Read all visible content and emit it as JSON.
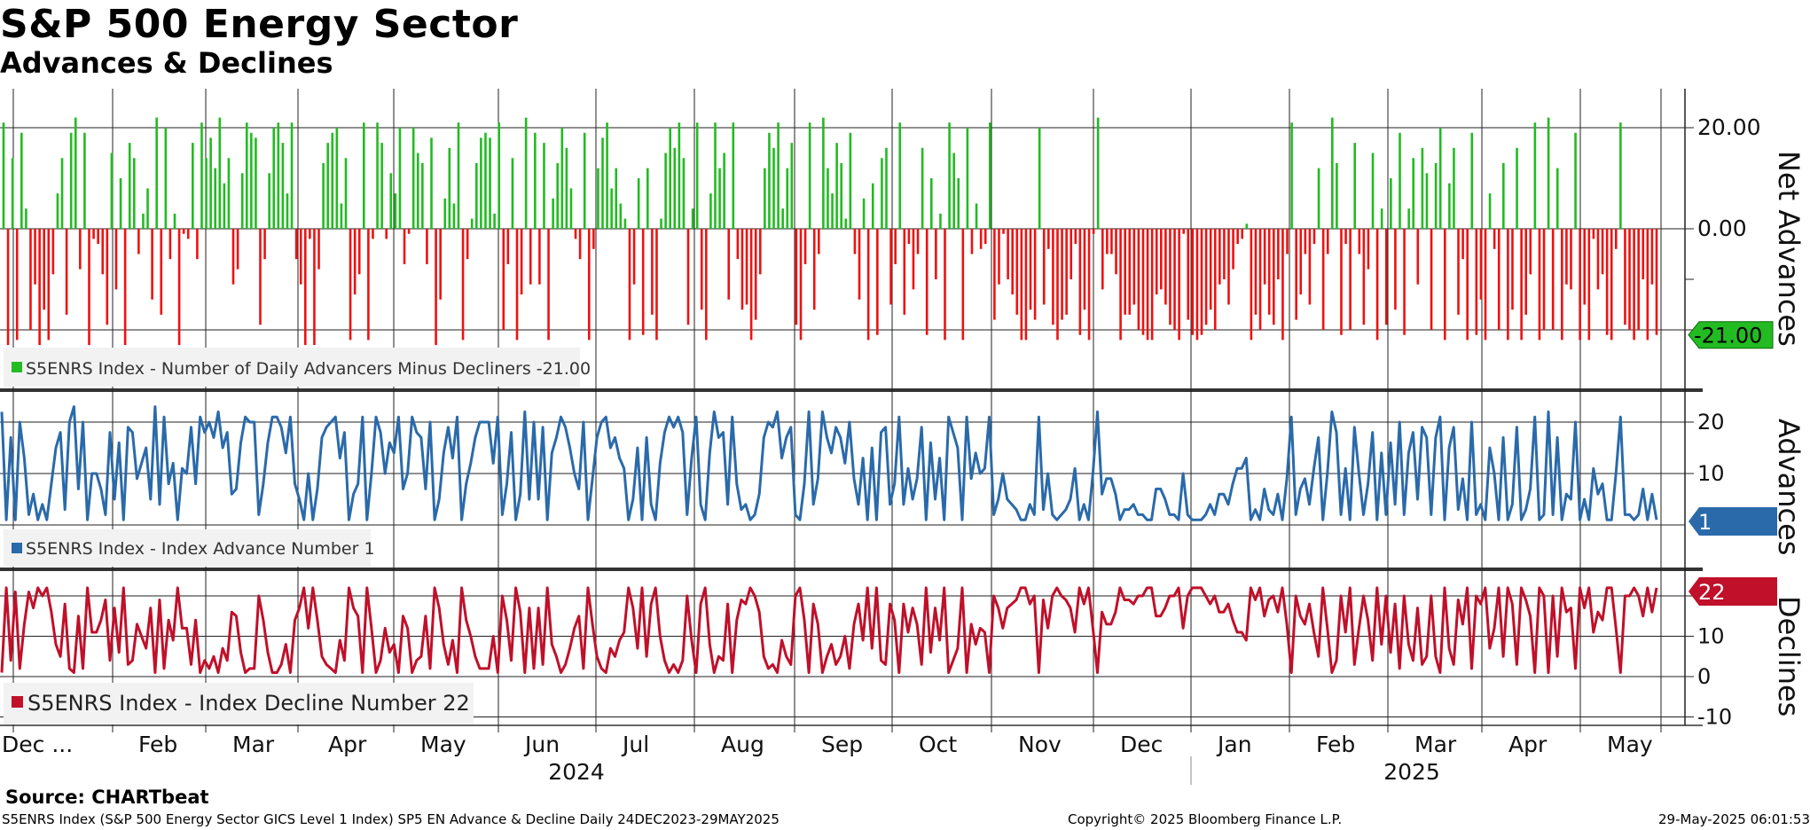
{
  "title": "S&P 500 Energy Sector",
  "subtitle": "Advances & Declines",
  "source": "Source: CHARTbeat",
  "footer": {
    "left": "S5ENRS Index (S&P 500 Energy Sector GICS Level 1 Index) SP5 EN Advance & Decline  Daily 24DEC2023-29MAY2025",
    "center": "Copyright© 2025 Bloomberg Finance L.P.",
    "right": "29-May-2025 06:01:53"
  },
  "colors": {
    "positive": "#22bb22",
    "negative": "#ee1111",
    "advances": "#2a6aaa",
    "declines": "#c0102a",
    "legendBg": "#f2f2f2",
    "tagGreen": "#22bb22",
    "tagBlue": "#2a6aaa",
    "tagRed": "#c0102a"
  },
  "chart_data": [
    {
      "type": "bar",
      "name": "net-advances",
      "axis_label": "Net Advances",
      "legend": "S5ENRS Index - Number of Daily Advancers Minus Decliners -21.00",
      "ylim": [
        -30,
        27
      ],
      "yticks": [
        20,
        0
      ],
      "ytick_labels": [
        "20.00",
        "0.00"
      ],
      "last_value": -21,
      "last_label": "-21.00",
      "values": [
        21,
        -23,
        14,
        -22,
        19,
        4,
        -20,
        -11,
        -23,
        -16,
        -22,
        -9,
        7,
        14,
        -17,
        19,
        22,
        -8,
        19,
        -23,
        -2,
        -3,
        -9,
        -19,
        15,
        -12,
        10,
        -23,
        17,
        14,
        -5,
        3,
        8,
        -14,
        22,
        -17,
        20,
        -6,
        3,
        -23,
        -1,
        -2,
        17,
        -6,
        21,
        14,
        18,
        12,
        22,
        9,
        14,
        -11,
        -8,
        11,
        21,
        19,
        18,
        -19,
        -6,
        11,
        20,
        21,
        17,
        7,
        21,
        -6,
        -11,
        -23,
        -2,
        -23,
        -8,
        13,
        17,
        19,
        20,
        5,
        14,
        -22,
        -13,
        -9,
        21,
        -22,
        -2,
        21,
        17,
        -2,
        11,
        7,
        20,
        -7,
        -1,
        20,
        15,
        13,
        -7,
        18,
        -23,
        -14,
        6,
        16,
        5,
        21,
        -22,
        -6,
        2,
        13,
        18,
        19,
        18,
        3,
        21,
        -20,
        -7,
        14,
        -22,
        -13,
        22,
        -11,
        19,
        -11,
        17,
        -22,
        6,
        13,
        20,
        16,
        8,
        -2,
        -6,
        19,
        -22,
        -4,
        12,
        18,
        21,
        8,
        12,
        5,
        2,
        -22,
        -11,
        10,
        -21,
        12,
        -17,
        -22,
        2,
        15,
        20,
        16,
        21,
        14,
        -19,
        4,
        21,
        -16,
        -22,
        7,
        21,
        12,
        15,
        -14,
        21,
        -6,
        -16,
        -15,
        -22,
        -18,
        -9,
        12,
        19,
        16,
        21,
        4,
        12,
        17,
        -19,
        -22,
        -7,
        21,
        -16,
        -5,
        22,
        12,
        7,
        17,
        13,
        2,
        19,
        -5,
        -14,
        6,
        -22,
        9,
        -21,
        14,
        16,
        -15,
        -7,
        21,
        -17,
        -3,
        -12,
        -5,
        16,
        -21,
        10,
        -10,
        3,
        -22,
        21,
        15,
        10,
        -22,
        20,
        -5,
        5,
        -4,
        -3,
        21,
        -18,
        -11,
        -1,
        -10,
        -13,
        -17,
        -22,
        -22,
        -16,
        -18,
        20,
        -15,
        -4,
        -19,
        -22,
        -18,
        -17,
        -10,
        -3,
        -21,
        -16,
        -22,
        -1,
        22,
        -12,
        -5,
        -5,
        -9,
        -22,
        -17,
        -17,
        -15,
        -20,
        -21,
        -22,
        -22,
        -13,
        -12,
        -15,
        -19,
        -20,
        -22,
        -1,
        -18,
        -21,
        -22,
        -21,
        -19,
        -16,
        -20,
        -11,
        -10,
        -15,
        -8,
        -3,
        -2,
        1,
        -22,
        -17,
        -20,
        -11,
        -17,
        -19,
        -10,
        -22,
        -5,
        21,
        -18,
        -13,
        -5,
        -15,
        -3,
        12,
        -20,
        -5,
        22,
        13,
        -21,
        -3,
        -20,
        17,
        -5,
        -19,
        -8,
        15,
        -22,
        4,
        -19,
        10,
        -16,
        19,
        -21,
        4,
        14,
        -11,
        16,
        11,
        -20,
        13,
        20,
        -22,
        9,
        16,
        -17,
        -6,
        -22,
        19,
        -21,
        -14,
        -22,
        7,
        -4,
        -20,
        13,
        -22,
        -16,
        16,
        -22,
        -17,
        -9,
        21,
        -22,
        -20,
        22,
        -20,
        12,
        -22,
        -11,
        -12,
        19,
        -22,
        -15,
        -22,
        -2,
        -12,
        -9,
        -21,
        -22,
        -4,
        21,
        -19,
        -20,
        -22,
        -20,
        -10,
        -22,
        -11,
        -21
      ],
      "note": "green bars >= 0 (advances minus declines), red bars < 0"
    },
    {
      "type": "line",
      "name": "advances",
      "axis_label": "Advances",
      "legend": "S5ENRS Index - Index Advance Number 1",
      "ylim": [
        -8,
        26
      ],
      "yticks": [
        20,
        10
      ],
      "ytick_labels": [
        "20",
        "10"
      ],
      "last_value": 1,
      "last_label": "1",
      "values": [
        22,
        1,
        17,
        1,
        20,
        13,
        2,
        6,
        1,
        4,
        1,
        8,
        15,
        18,
        3,
        20,
        23,
        7,
        20,
        1,
        10,
        10,
        7,
        2,
        18,
        5,
        16,
        1,
        19,
        18,
        9,
        12,
        15,
        5,
        23,
        4,
        21,
        8,
        12,
        1,
        11,
        10,
        19,
        8,
        21,
        18,
        20,
        17,
        22,
        15,
        18,
        6,
        7,
        16,
        21,
        20,
        20,
        2,
        8,
        16,
        21,
        21,
        19,
        14,
        21,
        8,
        5,
        1,
        10,
        1,
        7,
        17,
        19,
        20,
        21,
        13,
        18,
        1,
        6,
        8,
        21,
        1,
        10,
        21,
        18,
        10,
        16,
        14,
        21,
        7,
        10,
        21,
        18,
        17,
        7,
        20,
        1,
        5,
        14,
        19,
        13,
        21,
        1,
        8,
        12,
        17,
        20,
        20,
        20,
        12,
        21,
        2,
        8,
        18,
        1,
        6,
        22,
        5,
        20,
        5,
        19,
        1,
        14,
        17,
        21,
        19,
        15,
        10,
        7,
        20,
        1,
        9,
        17,
        20,
        21,
        15,
        17,
        13,
        11,
        1,
        5,
        15,
        1,
        17,
        4,
        1,
        12,
        18,
        21,
        19,
        21,
        18,
        2,
        13,
        21,
        4,
        1,
        14,
        22,
        17,
        18,
        4,
        21,
        8,
        3,
        4,
        1,
        2,
        6,
        17,
        20,
        19,
        22,
        13,
        17,
        19,
        2,
        1,
        8,
        22,
        4,
        9,
        22,
        17,
        14,
        19,
        17,
        12,
        20,
        9,
        4,
        13,
        1,
        15,
        1,
        18,
        19,
        4,
        8,
        21,
        4,
        11,
        5,
        9,
        19,
        1,
        16,
        5,
        13,
        1,
        21,
        18,
        15,
        1,
        21,
        9,
        14,
        10,
        11,
        21,
        2,
        5,
        10,
        5,
        4,
        3,
        1,
        1,
        4,
        2,
        21,
        3,
        10,
        2,
        1,
        2,
        3,
        5,
        11,
        1,
        4,
        1,
        10,
        22,
        6,
        9,
        9,
        6,
        1,
        3,
        3,
        4,
        2,
        2,
        1,
        1,
        7,
        7,
        5,
        2,
        2,
        1,
        10,
        2,
        1,
        1,
        1,
        2,
        4,
        2,
        6,
        6,
        4,
        8,
        11,
        11,
        13,
        1,
        3,
        1,
        7,
        3,
        2,
        6,
        1,
        9,
        21,
        2,
        7,
        9,
        4,
        11,
        17,
        1,
        10,
        22,
        18,
        2,
        11,
        1,
        19,
        10,
        2,
        8,
        18,
        1,
        14,
        2,
        16,
        4,
        20,
        2,
        14,
        18,
        5,
        19,
        17,
        2,
        17,
        21,
        1,
        15,
        19,
        3,
        9,
        1,
        20,
        2,
        4,
        1,
        15,
        10,
        1,
        17,
        1,
        4,
        19,
        1,
        3,
        7,
        21,
        1,
        2,
        22,
        2,
        17,
        1,
        6,
        5,
        20,
        1,
        5,
        1,
        11,
        6,
        8,
        1,
        1,
        10,
        21,
        2,
        2,
        1,
        2,
        7,
        1,
        6,
        1
      ],
      "note": "approximate reading from line chart"
    },
    {
      "type": "line",
      "name": "declines",
      "axis_label": "Declines",
      "legend": "S5ENRS Index - Index Decline Number 22",
      "ylim": [
        -13,
        26
      ],
      "yticks": [
        20,
        10,
        0,
        -10
      ],
      "ytick_labels": [
        "20",
        "10",
        "0",
        "-10"
      ],
      "last_value": 22,
      "last_label": "22",
      "values": [
        1,
        22,
        4,
        21,
        2,
        13,
        21,
        17,
        22,
        20,
        22,
        16,
        8,
        5,
        18,
        2,
        1,
        15,
        2,
        22,
        11,
        11,
        14,
        19,
        4,
        17,
        6,
        22,
        3,
        4,
        13,
        10,
        7,
        17,
        1,
        19,
        2,
        14,
        9,
        22,
        12,
        12,
        3,
        14,
        1,
        4,
        2,
        5,
        1,
        7,
        4,
        16,
        15,
        6,
        1,
        2,
        2,
        20,
        14,
        6,
        1,
        1,
        3,
        8,
        1,
        14,
        17,
        22,
        12,
        22,
        14,
        5,
        3,
        2,
        1,
        9,
        4,
        22,
        17,
        15,
        1,
        22,
        12,
        1,
        4,
        12,
        6,
        8,
        1,
        15,
        12,
        1,
        4,
        5,
        15,
        2,
        22,
        17,
        8,
        3,
        9,
        1,
        22,
        14,
        10,
        5,
        2,
        2,
        2,
        10,
        1,
        20,
        14,
        4,
        22,
        16,
        1,
        17,
        2,
        17,
        3,
        22,
        8,
        5,
        1,
        3,
        7,
        12,
        15,
        2,
        22,
        13,
        5,
        2,
        1,
        7,
        5,
        9,
        11,
        22,
        17,
        7,
        22,
        5,
        18,
        22,
        10,
        4,
        1,
        3,
        1,
        4,
        20,
        9,
        1,
        18,
        22,
        8,
        1,
        5,
        4,
        18,
        1,
        14,
        19,
        18,
        22,
        20,
        16,
        5,
        2,
        3,
        1,
        9,
        5,
        3,
        20,
        22,
        14,
        1,
        18,
        13,
        1,
        5,
        8,
        3,
        5,
        10,
        2,
        13,
        18,
        9,
        22,
        7,
        22,
        4,
        3,
        18,
        14,
        1,
        18,
        11,
        17,
        13,
        3,
        22,
        6,
        17,
        9,
        22,
        1,
        4,
        7,
        22,
        1,
        13,
        8,
        12,
        11,
        1,
        20,
        17,
        12,
        17,
        18,
        19,
        22,
        22,
        18,
        20,
        1,
        19,
        12,
        20,
        22,
        20,
        19,
        17,
        11,
        22,
        18,
        22,
        12,
        1,
        16,
        13,
        13,
        16,
        22,
        19,
        19,
        18,
        20,
        20,
        22,
        22,
        15,
        15,
        17,
        20,
        20,
        22,
        12,
        20,
        22,
        22,
        22,
        20,
        18,
        20,
        16,
        16,
        18,
        14,
        11,
        11,
        9,
        22,
        19,
        22,
        15,
        19,
        20,
        16,
        22,
        13,
        1,
        20,
        15,
        13,
        18,
        11,
        5,
        22,
        12,
        1,
        4,
        20,
        11,
        22,
        3,
        12,
        20,
        14,
        4,
        22,
        8,
        20,
        6,
        18,
        2,
        20,
        8,
        4,
        17,
        3,
        5,
        20,
        5,
        1,
        22,
        7,
        3,
        19,
        13,
        22,
        2,
        20,
        18,
        22,
        7,
        12,
        22,
        5,
        22,
        18,
        3,
        22,
        19,
        15,
        1,
        22,
        20,
        1,
        20,
        5,
        22,
        16,
        17,
        2,
        22,
        17,
        22,
        11,
        16,
        14,
        22,
        22,
        12,
        1,
        20,
        20,
        22,
        20,
        15,
        22,
        16,
        22
      ]
    }
  ],
  "x_axis": {
    "months": [
      "Dec ...",
      "Feb",
      "Mar",
      "Apr",
      "May",
      "Jun",
      "Jul",
      "Aug",
      "Sep",
      "Oct",
      "Nov",
      "Dec",
      "Jan",
      "Feb",
      "Mar",
      "Apr",
      "May"
    ],
    "years": [
      "2024",
      "2025"
    ]
  }
}
